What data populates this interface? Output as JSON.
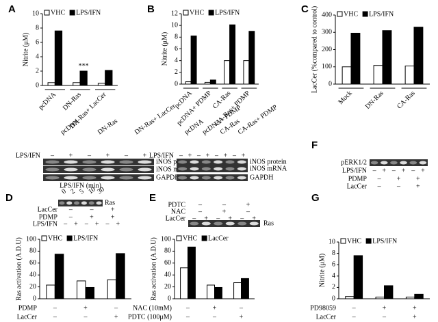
{
  "panel_letters": [
    "A",
    "B",
    "C",
    "D",
    "E",
    "F",
    "G"
  ],
  "chart_data": [
    {
      "type": "bar",
      "ylabel": "Nitrite (μM)",
      "categories": [
        "pcDNA",
        "DN-Ras",
        "DN-Ras+ LacCer"
      ],
      "annotation": "***",
      "series": [
        {
          "name": "VHC",
          "color": "#ffffff",
          "values": [
            0.4,
            0.4,
            0.3
          ]
        },
        {
          "name": "LPS/IFN",
          "color": "#000000",
          "values": [
            7.6,
            2.0,
            2.1
          ]
        }
      ],
      "ylim": [
        0,
        10
      ],
      "yticks": [
        0,
        2,
        4,
        6,
        8,
        10
      ]
    },
    {
      "type": "bar",
      "ylabel": "Nitrite (μM)",
      "categories": [
        "pcDNA",
        "pcDNA+ PDMP",
        "CA-Ras",
        "CA-Ras+ PDMP"
      ],
      "series": [
        {
          "name": "VHC",
          "color": "#ffffff",
          "values": [
            0.4,
            0.3,
            4.0,
            4.0
          ]
        },
        {
          "name": "LPS/IFN",
          "color": "#000000",
          "values": [
            8.2,
            0.7,
            10.1,
            9.0
          ]
        }
      ],
      "ylim": [
        0,
        12
      ],
      "yticks": [
        0,
        2,
        4,
        6,
        8,
        10,
        12
      ]
    },
    {
      "type": "bar",
      "ylabel": "LacCer (%compared to control)",
      "categories": [
        "Mock",
        "DN-Ras",
        "CA-Ras"
      ],
      "series": [
        {
          "name": "VHC",
          "color": "#ffffff",
          "values": [
            100,
            108,
            105
          ]
        },
        {
          "name": "LPS/IFN",
          "color": "#000000",
          "values": [
            295,
            310,
            330
          ]
        }
      ],
      "ylim": [
        0,
        400
      ],
      "yticks": [
        0,
        100,
        200,
        300,
        400
      ]
    },
    {
      "type": "bar",
      "ylabel": "Ras activation (A.D.U)",
      "condition_rows": [
        {
          "label": "PDMP",
          "signs": [
            "–",
            "+",
            "–"
          ]
        },
        {
          "label": "LacCer",
          "signs": [
            "–",
            "–",
            "+"
          ]
        }
      ],
      "series": [
        {
          "name": "VHC",
          "color": "#ffffff",
          "values": [
            23,
            30,
            32
          ]
        },
        {
          "name": "LPS/IFN",
          "color": "#000000",
          "values": [
            75,
            19,
            76
          ]
        }
      ],
      "ylim": [
        0,
        100
      ],
      "yticks": [
        0,
        20,
        40,
        60,
        80,
        100
      ]
    },
    {
      "type": "bar",
      "ylabel": "Ras activation (A.D.U)",
      "condition_rows": [
        {
          "label": "NAC (10mM)",
          "signs": [
            "–",
            "+",
            "–"
          ]
        },
        {
          "label": "PDTC (100μM)",
          "signs": [
            "–",
            "–",
            "+"
          ]
        }
      ],
      "series": [
        {
          "name": "VHC",
          "color": "#ffffff",
          "values": [
            52,
            23,
            27
          ]
        },
        {
          "name": "LacCer",
          "color": "#000000",
          "values": [
            87,
            19,
            34
          ]
        }
      ],
      "ylim": [
        0,
        100
      ],
      "yticks": [
        0,
        20,
        40,
        60,
        80,
        100
      ]
    },
    {
      "type": "bar",
      "ylabel": "Nitrite (μM)",
      "condition_rows": [
        {
          "label": "PD98059",
          "signs": [
            "–",
            "+",
            "+"
          ]
        },
        {
          "label": "LacCer",
          "signs": [
            "–",
            "–",
            "+"
          ]
        }
      ],
      "series": [
        {
          "name": "VHC",
          "color": "#ffffff",
          "values": [
            0.4,
            0.3,
            0.3
          ]
        },
        {
          "name": "LPS/IFN",
          "color": "#000000",
          "values": [
            7.6,
            2.3,
            0.8
          ]
        }
      ],
      "ylim": [
        0,
        10
      ],
      "yticks": [
        0,
        2,
        4,
        6,
        8,
        10
      ]
    }
  ],
  "blots": [
    {
      "lanes": [
        "pcDNA",
        "DN-Ras",
        "DN-Ras+ LacCer"
      ],
      "rows": [
        {
          "label": "LPS/IFN",
          "signs": [
            "–",
            "+",
            "–",
            "+",
            "–",
            "+"
          ]
        }
      ],
      "bands": [
        "iNOS protein",
        "iNOS mRNA",
        "GAPDH"
      ]
    },
    {
      "lanes": [
        "pcDNA",
        "pcDNA+ PDMP",
        "CA-Ras",
        "CA-Ras+ PDMP"
      ],
      "rows": [
        {
          "label": "LPS/IFN",
          "signs": [
            "–",
            "+",
            "–",
            "+",
            "–",
            "+",
            "–",
            "+"
          ]
        }
      ],
      "bands": [
        "iNOS protein",
        "iNOS mRNA",
        "GAPDH"
      ]
    },
    {
      "title": "LPS/IFN (min)",
      "lanes": [
        "0",
        "2",
        "5",
        "10",
        "30"
      ],
      "bands": [
        "Ras"
      ]
    },
    {
      "rows": [
        {
          "label": "LacCer",
          "signs": [
            "–",
            "–",
            "+"
          ]
        },
        {
          "label": "PDMP",
          "signs": [
            "–",
            "+",
            "+"
          ]
        },
        {
          "label": "LPS/IFN",
          "signs": [
            "–",
            "+",
            "–",
            "+",
            "–",
            "+"
          ]
        }
      ]
    },
    {
      "rows": [
        {
          "label": "PDTC",
          "signs": [
            "–",
            "–",
            "+"
          ]
        },
        {
          "label": "NAC",
          "signs": [
            "–",
            "+",
            "–"
          ]
        },
        {
          "label": "LacCer",
          "signs": [
            "–",
            "+",
            "–",
            "+",
            "–",
            "+"
          ]
        }
      ],
      "bands": [
        "Ras"
      ]
    },
    {
      "bands": [
        "pERK1/2"
      ],
      "rows": [
        {
          "label": "LPS/IFN",
          "signs": [
            "–",
            "+",
            "–",
            "+",
            "–",
            "+"
          ]
        },
        {
          "label": "PDMP",
          "signs": [
            "–",
            "+",
            "+"
          ]
        },
        {
          "label": "LacCer",
          "signs": [
            "–",
            "–",
            "+"
          ]
        }
      ]
    }
  ]
}
